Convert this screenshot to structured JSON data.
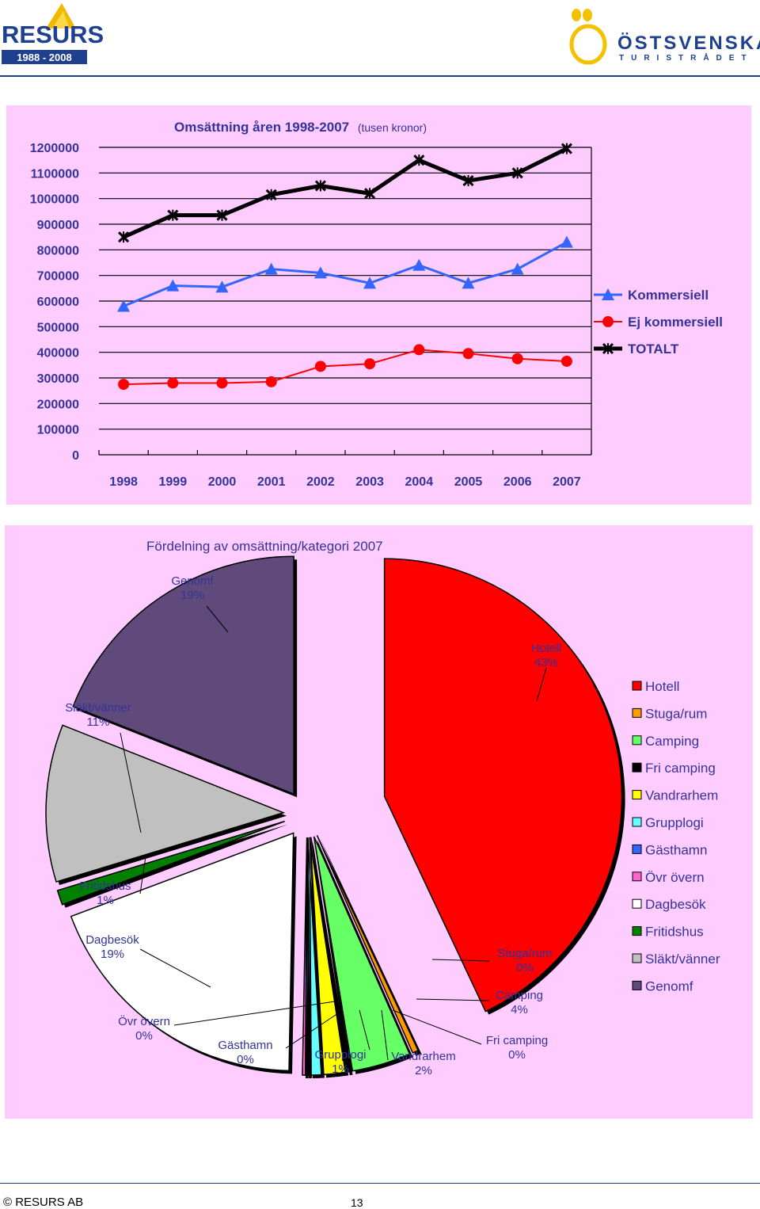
{
  "header": {
    "resurs_logo_text": "RESURS",
    "resurs_years": "1988 - 2008",
    "ost_logo_text": "ÖSTSVENSKA",
    "ost_logo_sub": "TURISTRÅDET"
  },
  "colors": {
    "panel_bg": "#ffccff",
    "kommersiell": "#3366ff",
    "ej_kommersiell": "#ff0000",
    "totalt": "#000000",
    "title": "#333399"
  },
  "line_chart": {
    "title_main": "Omsättning åren 1998-2007",
    "title_sub": "(tusen kronor)"
  },
  "pie_chart": {
    "title": "Fördelning av omsättning/kategori 2007"
  },
  "chart_data": [
    {
      "type": "line",
      "categories": [
        "1998",
        "1999",
        "2000",
        "2001",
        "2002",
        "2003",
        "2004",
        "2005",
        "2006",
        "2007"
      ],
      "ylim": [
        0,
        1200000
      ],
      "yticks": [
        "1200000",
        "1100000",
        "1000000",
        "900000",
        "800000",
        "700000",
        "600000",
        "500000",
        "400000",
        "300000",
        "200000",
        "100000",
        "0"
      ],
      "grid": true,
      "legend_position": "right",
      "series": [
        {
          "name": "Kommersiell",
          "marker": "triangle",
          "color": "#3366ff",
          "values": [
            580000,
            660000,
            655000,
            725000,
            710000,
            670000,
            740000,
            670000,
            725000,
            830000
          ]
        },
        {
          "name": "Ej kommersiell",
          "marker": "circle",
          "color": "#ff0000",
          "values": [
            275000,
            280000,
            280000,
            285000,
            345000,
            355000,
            410000,
            395000,
            375000,
            365000
          ]
        },
        {
          "name": "TOTALT",
          "marker": "star",
          "color": "#000000",
          "values": [
            850000,
            935000,
            935000,
            1015000,
            1050000,
            1020000,
            1150000,
            1070000,
            1100000,
            1195000
          ]
        }
      ]
    },
    {
      "type": "pie",
      "legend_position": "right",
      "slices": [
        {
          "name": "Hotell",
          "label": "Hotell",
          "pct_label": "43%",
          "value": 43,
          "color": "#ff0000"
        },
        {
          "name": "Stuga/rum",
          "label": "Stuga/rum",
          "pct_label": "0%",
          "value": 0.4,
          "color": "#ff9900"
        },
        {
          "name": "Camping",
          "label": "Camping",
          "pct_label": "4%",
          "value": 4,
          "color": "#66ff66"
        },
        {
          "name": "Fri camping",
          "label": "Fri camping",
          "pct_label": "0%",
          "value": 0.2,
          "color": "#000000"
        },
        {
          "name": "Vandrarhem",
          "label": "Vandrarhem",
          "pct_label": "2%",
          "value": 1.5,
          "color": "#ffff00"
        },
        {
          "name": "Grupplogi",
          "label": "Grupplogi",
          "pct_label": "1%",
          "value": 0.8,
          "color": "#66ffff"
        },
        {
          "name": "Gästhamn",
          "label": "Gästhamn",
          "pct_label": "0%",
          "value": 0.2,
          "color": "#3366ff"
        },
        {
          "name": "Övr övern",
          "label": "Övr övern",
          "pct_label": "0%",
          "value": 0.2,
          "color": "#ff66cc"
        },
        {
          "name": "Dagbesök",
          "label": "Dagbesök",
          "pct_label": "19%",
          "value": 19,
          "color": "#ffffff"
        },
        {
          "name": "Fritidshus",
          "label": "Fritidshus",
          "pct_label": "1%",
          "value": 1,
          "color": "#008000"
        },
        {
          "name": "Släkt/vänner",
          "label": "Släkt/vänner",
          "pct_label": "11%",
          "value": 10.7,
          "color": "#c0c0c0"
        },
        {
          "name": "Genomf",
          "label": "Genomf",
          "pct_label": "19%",
          "value": 19,
          "color": "#604a7b"
        }
      ]
    }
  ],
  "footer": {
    "copyright": "© RESURS AB",
    "page_number": "13"
  }
}
